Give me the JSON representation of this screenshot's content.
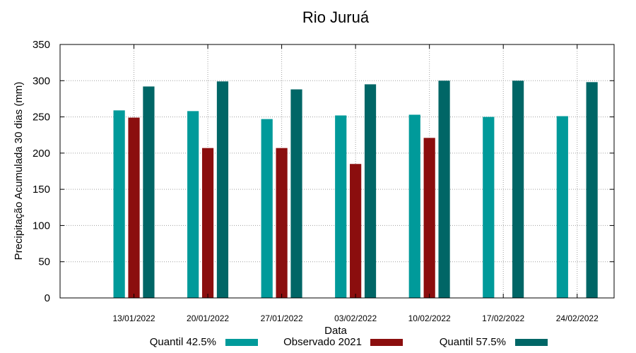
{
  "chart_data": {
    "type": "bar",
    "title": "Rio Juruá",
    "xlabel": "Data",
    "ylabel": "Precipitação Acumulada 30 dias (mm)",
    "ylim": [
      0,
      350
    ],
    "yticks": [
      0,
      50,
      100,
      150,
      200,
      250,
      300,
      350
    ],
    "grid": true,
    "legend_position": "bottom",
    "categories": [
      "13/01/2022",
      "20/01/2022",
      "27/01/2022",
      "03/02/2022",
      "10/02/2022",
      "17/02/2022",
      "24/02/2022"
    ],
    "series": [
      {
        "name": "Quantil 42.5%",
        "color": "#009a9a",
        "values": [
          259,
          258,
          247,
          252,
          253,
          250,
          251
        ]
      },
      {
        "name": "Observado 2021",
        "color": "#8b0e0e",
        "values": [
          249,
          207,
          207,
          185,
          221,
          null,
          null
        ]
      },
      {
        "name": "Quantil 57.5%",
        "color": "#006666",
        "values": [
          292,
          299,
          288,
          295,
          300,
          300,
          298
        ]
      }
    ]
  }
}
